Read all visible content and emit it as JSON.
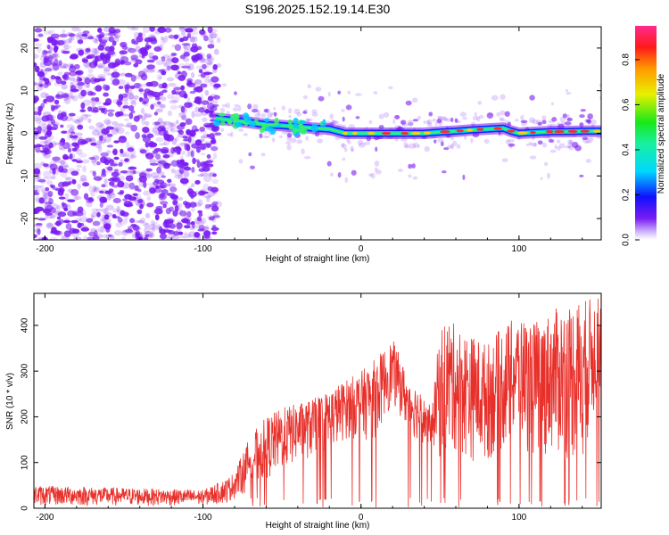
{
  "title": "S196.2025.152.19.14.E30",
  "colors": {
    "snr_line": "#e8302b",
    "dots": "#7a1cf2",
    "ridge_core": "#ff2a2a",
    "ridge_mid": "#39f06a",
    "ridge_edge": "#00c8ff"
  },
  "chart_data": [
    {
      "type": "heatmap",
      "title": "S196.2025.152.19.14.E30",
      "xlabel": "Height of straight line (km)",
      "ylabel": "Frequency (Hz)",
      "xlim": [
        -207,
        152
      ],
      "ylim": [
        -25,
        25
      ],
      "x_ticks": [
        -200,
        -100,
        0,
        100
      ],
      "x_tick_labels": [
        "-200",
        "-100",
        "0",
        "100"
      ],
      "y_ticks": [
        -20,
        -10,
        0,
        10,
        20
      ],
      "y_tick_labels": [
        "-20",
        "-10",
        "0",
        "10",
        "20"
      ],
      "colorbar": {
        "label": "Normalized spectral amplitude",
        "range": [
          0,
          0.95
        ],
        "ticks": [
          0.0,
          0.2,
          0.4,
          0.6,
          0.8
        ],
        "tick_labels": [
          "0.0",
          "0.2",
          "0.4",
          "0.6",
          "0.8"
        ]
      },
      "ridge": {
        "x": [
          -92,
          -80,
          -70,
          -60,
          -50,
          -40,
          -30,
          -20,
          -15,
          -10,
          0,
          10,
          20,
          30,
          40,
          50,
          60,
          70,
          80,
          90,
          95,
          100,
          110,
          120,
          130,
          140,
          152
        ],
        "y": [
          3.5,
          3.0,
          2.5,
          2.0,
          1.8,
          1.5,
          1.2,
          1.0,
          0.5,
          0.0,
          0.0,
          0.0,
          0.0,
          0.0,
          0.0,
          0.3,
          0.5,
          0.8,
          1.0,
          1.2,
          0.5,
          0.0,
          0.2,
          0.4,
          0.4,
          0.5,
          0.5
        ]
      },
      "noise_region_x": [
        -207,
        -90
      ]
    },
    {
      "type": "line",
      "xlabel": "Height of straight line (km)",
      "ylabel": "SNR (10 * v/v)",
      "xlim": [
        -207,
        152
      ],
      "ylim": [
        0,
        470
      ],
      "x_ticks": [
        -200,
        -100,
        0,
        100
      ],
      "x_tick_labels": [
        "-200",
        "-100",
        "0",
        "100"
      ],
      "y_ticks": [
        0,
        100,
        200,
        300,
        400
      ],
      "y_tick_labels": [
        "0",
        "100",
        "200",
        "300",
        "400"
      ],
      "envelope": {
        "x": [
          -207,
          -100,
          -85,
          -80,
          -70,
          -60,
          -50,
          -40,
          -30,
          -20,
          -10,
          0,
          10,
          15,
          20,
          25,
          30,
          35,
          40,
          45,
          50,
          55,
          60,
          70,
          80,
          90,
          100,
          110,
          120,
          130,
          140,
          152
        ],
        "y_max": [
          50,
          40,
          65,
          80,
          160,
          200,
          220,
          230,
          240,
          260,
          280,
          300,
          330,
          350,
          370,
          330,
          280,
          270,
          240,
          220,
          400,
          420,
          400,
          380,
          360,
          400,
          420,
          410,
          430,
          450,
          460,
          460
        ],
        "y_min": [
          5,
          5,
          10,
          20,
          40,
          60,
          80,
          100,
          110,
          120,
          150,
          150,
          150,
          200,
          220,
          200,
          160,
          150,
          140,
          140,
          100,
          100,
          120,
          100,
          100,
          120,
          150,
          100,
          120,
          100,
          100,
          250
        ]
      }
    }
  ]
}
